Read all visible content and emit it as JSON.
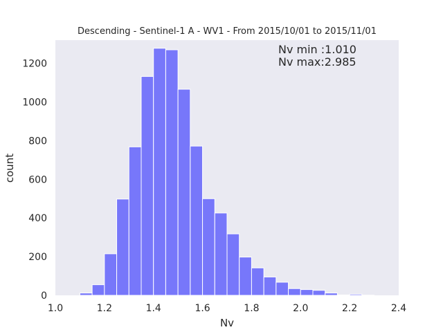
{
  "chart_data": {
    "type": "bar",
    "title": "Descending - Sentinel-1 A - WV1 - From 2015/10/01 to 2015/11/01",
    "xlabel": "Nv",
    "ylabel": "count",
    "xlim": [
      1.0,
      2.4
    ],
    "ylim": [
      0,
      1320
    ],
    "xticks": [
      1.0,
      1.2,
      1.4,
      1.6,
      1.8,
      2.0,
      2.2,
      2.4
    ],
    "xtick_labels": [
      "1.0",
      "1.2",
      "1.4",
      "1.6",
      "1.8",
      "2.0",
      "2.2",
      "2.4"
    ],
    "yticks": [
      0,
      200,
      400,
      600,
      800,
      1000,
      1200
    ],
    "ytick_labels": [
      "0",
      "200",
      "400",
      "600",
      "800",
      "1000",
      "1200"
    ],
    "bin_width": 0.1,
    "bins": [
      {
        "x0": 1.1,
        "count": 12
      },
      {
        "x0": 1.15,
        "count": 55
      },
      {
        "x0": 1.2,
        "count": 215
      },
      {
        "x0": 1.25,
        "count": 498
      },
      {
        "x0": 1.3,
        "count": 768
      },
      {
        "x0": 1.35,
        "count": 1132
      },
      {
        "x0": 1.4,
        "count": 1278
      },
      {
        "x0": 1.45,
        "count": 1270
      },
      {
        "x0": 1.5,
        "count": 1066
      },
      {
        "x0": 1.55,
        "count": 772
      },
      {
        "x0": 1.6,
        "count": 500
      },
      {
        "x0": 1.65,
        "count": 426
      },
      {
        "x0": 1.7,
        "count": 318
      },
      {
        "x0": 1.75,
        "count": 198
      },
      {
        "x0": 1.8,
        "count": 142
      },
      {
        "x0": 1.85,
        "count": 95
      },
      {
        "x0": 1.9,
        "count": 68
      },
      {
        "x0": 1.95,
        "count": 35
      },
      {
        "x0": 2.0,
        "count": 30
      },
      {
        "x0": 2.05,
        "count": 26
      },
      {
        "x0": 2.1,
        "count": 12
      },
      {
        "x0": 2.15,
        "count": 2
      },
      {
        "x0": 2.2,
        "count": 6
      },
      {
        "x0": 2.25,
        "count": 1
      }
    ],
    "annotations": [
      "Nv min :1.010",
      "Nv max:2.985"
    ],
    "annotation_placement": "top-right",
    "grid": false,
    "bar_color": "#7777fa",
    "plot_background": "#eaeaf2"
  }
}
